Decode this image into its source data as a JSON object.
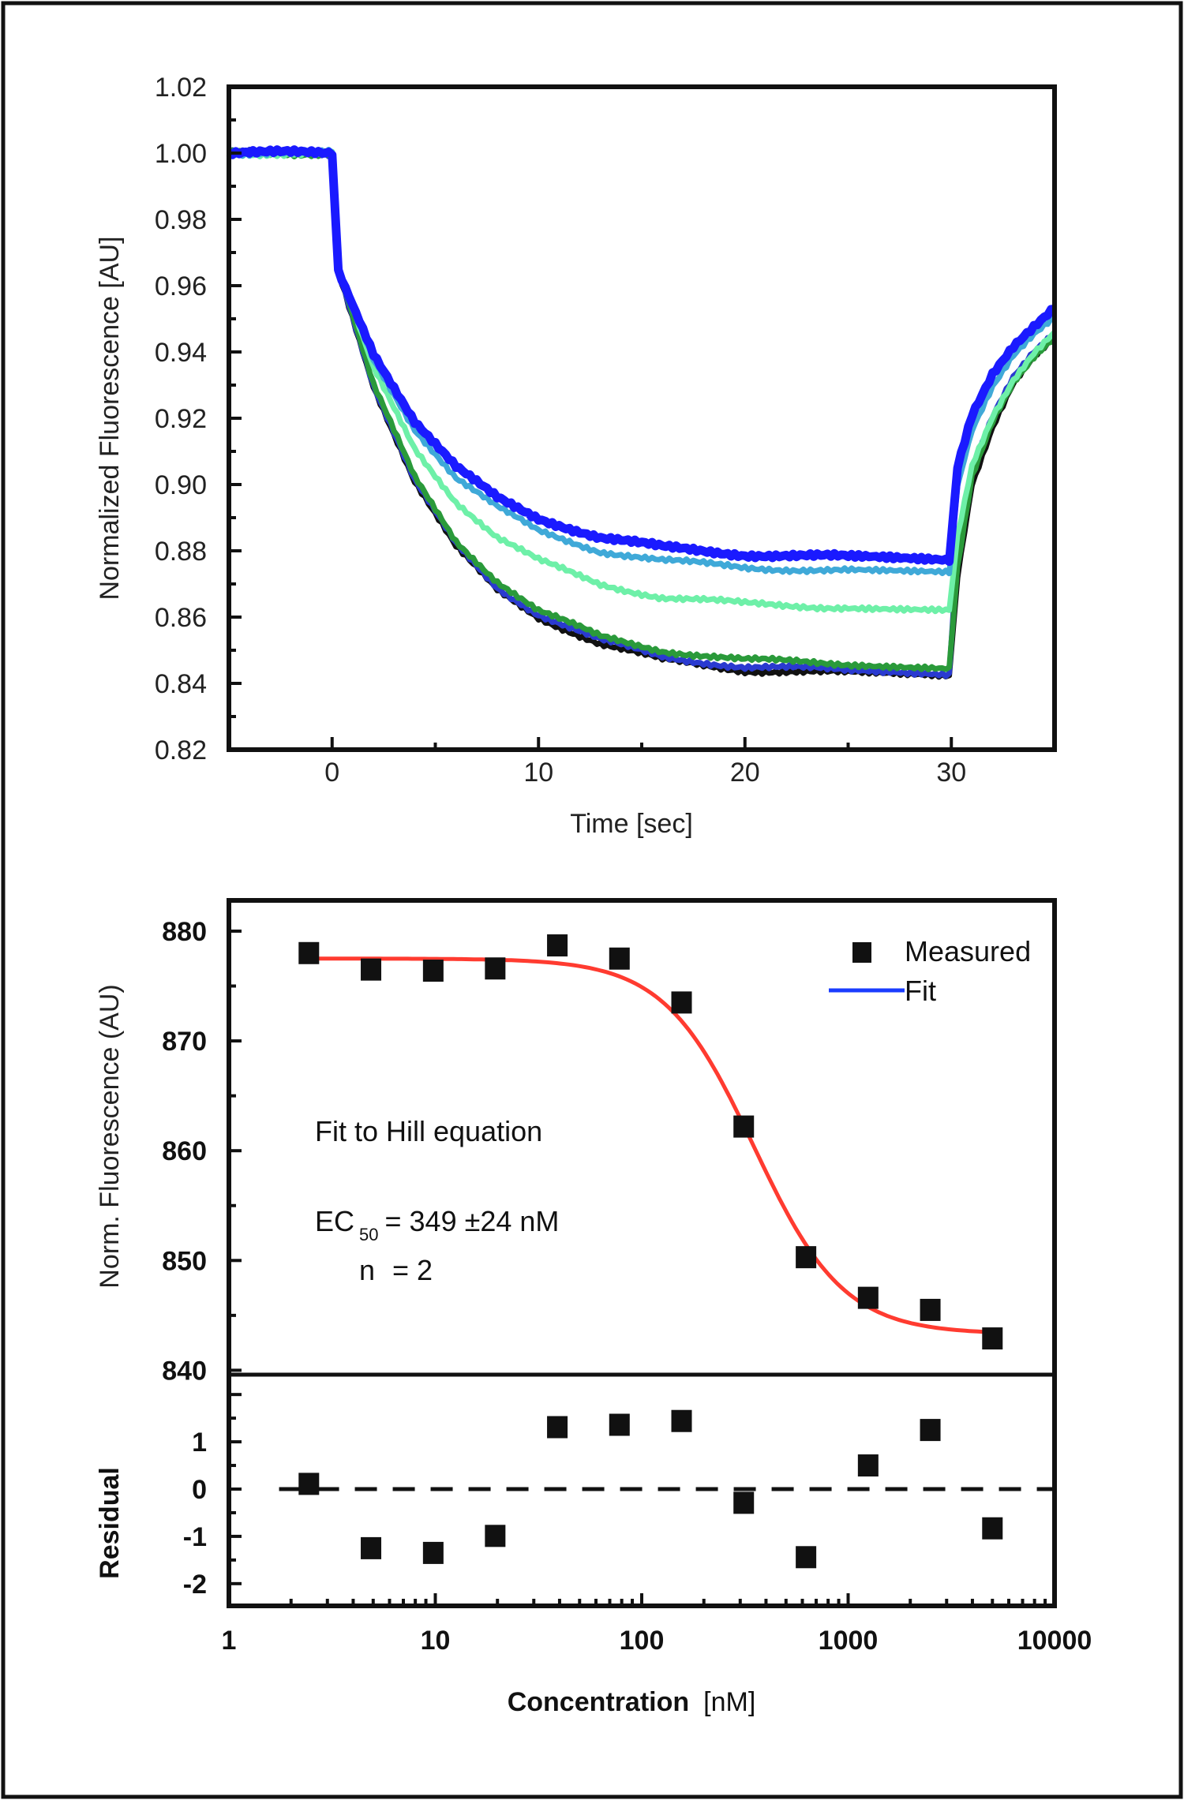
{
  "chart_data": [
    {
      "type": "line",
      "xlabel": "Time [sec]",
      "ylabel": "Normalized Fluorescence [AU]",
      "xlim": [
        -5,
        35
      ],
      "ylim": [
        0.82,
        1.02
      ],
      "xticks": [
        "0",
        "10",
        "20",
        "30"
      ],
      "yticks": [
        "1.02",
        "1.00",
        "0.98",
        "0.96",
        "0.94",
        "0.92",
        "0.90",
        "0.88",
        "0.86",
        "0.84",
        "0.82"
      ],
      "grid": false,
      "x": [
        -5,
        -2,
        0,
        0.3,
        2,
        4,
        6,
        8,
        10,
        13,
        16,
        20,
        25,
        29.9,
        30.3,
        31,
        32,
        33,
        34,
        35
      ],
      "series": [
        {
          "color": "#111111",
          "values": [
            1,
            1,
            1,
            0.965,
            0.93,
            0.901,
            0.881,
            0.868,
            0.86,
            0.852,
            0.847,
            0.844,
            0.843,
            0.842,
            0.872,
            0.9,
            0.917,
            0.93,
            0.938,
            0.944
          ]
        },
        {
          "color": "#2a3ad0",
          "values": [
            1,
            1,
            1,
            0.965,
            0.93,
            0.901,
            0.882,
            0.869,
            0.861,
            0.853,
            0.848,
            0.845,
            0.844,
            0.843,
            0.88,
            0.904,
            0.92,
            0.932,
            0.94,
            0.946
          ]
        },
        {
          "color": "#2a9a3a",
          "values": [
            1,
            1,
            1,
            0.965,
            0.93,
            0.902,
            0.883,
            0.871,
            0.862,
            0.854,
            0.85,
            0.847,
            0.846,
            0.845,
            0.875,
            0.902,
            0.919,
            0.931,
            0.939,
            0.945
          ]
        },
        {
          "color": "#6ef0a8",
          "values": [
            1,
            1,
            1,
            0.965,
            0.935,
            0.911,
            0.895,
            0.884,
            0.877,
            0.87,
            0.866,
            0.864,
            0.863,
            0.862,
            0.885,
            0.906,
            0.921,
            0.932,
            0.94,
            0.946
          ]
        },
        {
          "color": "#3fa9d8",
          "values": [
            1,
            1,
            1,
            0.965,
            0.938,
            0.917,
            0.902,
            0.893,
            0.886,
            0.88,
            0.877,
            0.875,
            0.874,
            0.873,
            0.9,
            0.917,
            0.93,
            0.939,
            0.945,
            0.95
          ]
        },
        {
          "color": "#1a1aff",
          "values": [
            1,
            1,
            1,
            0.965,
            0.94,
            0.919,
            0.905,
            0.896,
            0.89,
            0.884,
            0.881,
            0.879,
            0.878,
            0.877,
            0.905,
            0.921,
            0.933,
            0.941,
            0.947,
            0.953
          ]
        }
      ]
    },
    {
      "type": "scatter",
      "xlabel": "Concentration",
      "xlabel_unit": "[nM]",
      "ylabel": "Norm. Fluorescence (AU)",
      "x_scale": "log",
      "xlim": [
        1,
        10000
      ],
      "ylim": [
        839.6,
        882.8
      ],
      "xticks": [
        "1",
        "10",
        "100",
        "1000",
        "10000"
      ],
      "yticks": [
        "880",
        "870",
        "860",
        "850",
        "840"
      ],
      "grid": false,
      "legend": {
        "position": "top-right",
        "entries": [
          "Measured",
          "Fit"
        ],
        "fit_legend_color": "#1a3cff"
      },
      "fit_color": "#ff3b30",
      "x": [
        2.44,
        4.88,
        9.77,
        19.5,
        39,
        78,
        156,
        312,
        625,
        1250,
        2500,
        5000
      ],
      "measured": [
        878.0,
        876.5,
        876.4,
        876.6,
        878.7,
        877.5,
        873.5,
        862.2,
        850.3,
        846.6,
        845.5,
        842.9
      ],
      "fit": {
        "model": "Hill",
        "top": 877.5,
        "bottom": 843.3,
        "ec50": 349,
        "n": 2
      },
      "annotations": {
        "title": "Fit to Hill equation",
        "ec50_prefix": "EC",
        "ec50_sub": "50",
        "ec50_text": "= 349 ±24 nM",
        "n_label": "n",
        "n_text": "= 2"
      },
      "residual": {
        "ylabel": "Residual",
        "ylim": [
          -2.47,
          2.42
        ],
        "yticks": [
          "1",
          "0",
          "-1",
          "-2"
        ],
        "values": [
          0.11,
          -1.25,
          -1.35,
          -0.99,
          1.31,
          1.36,
          1.44,
          -0.29,
          -1.44,
          0.5,
          1.25,
          -0.83
        ]
      }
    }
  ]
}
